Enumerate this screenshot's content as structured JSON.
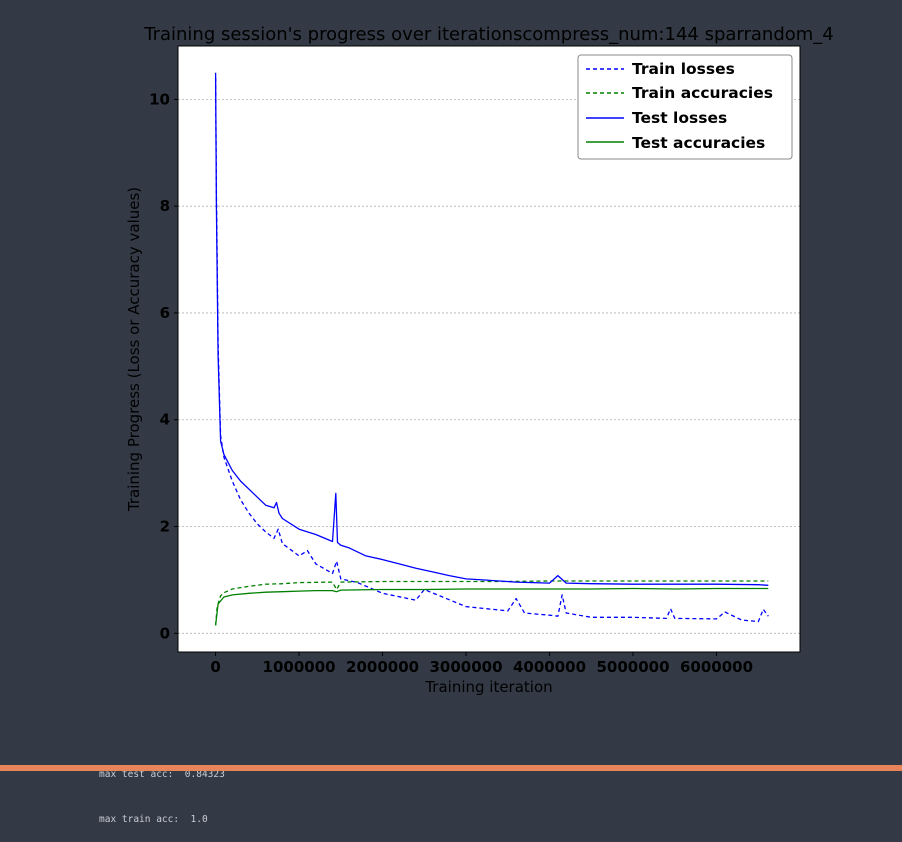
{
  "output": {
    "stats_lines": [
      "max test acc:  0.84323",
      "max train acc:  1.0"
    ]
  },
  "colors": {
    "page_background": "#333a45",
    "plot_background": "#ffffff",
    "losses": "#0000ff",
    "accuracies": "#008000",
    "footer_bar": "#e9845a"
  },
  "chart_data": {
    "type": "line",
    "title": "Training session's progress over iterationscompress_num:144 sparrandom_4",
    "xlabel": "Training iteration",
    "ylabel": "Training Progress (Loss or Accuracy values)",
    "xlim": [
      -450000,
      7000000
    ],
    "ylim": [
      -0.35,
      11.0
    ],
    "x_ticks": [
      0,
      1000000,
      2000000,
      3000000,
      4000000,
      5000000,
      6000000
    ],
    "y_ticks": [
      0,
      2,
      4,
      6,
      8,
      10
    ],
    "grid": "horizontal dashed",
    "legend_position": "top-right",
    "series": [
      {
        "name": "Train losses",
        "style": "dashed",
        "color": "#0000ff",
        "x": [
          0,
          10000,
          30000,
          60000,
          100000,
          200000,
          300000,
          400000,
          500000,
          600000,
          700000,
          750000,
          800000,
          1000000,
          1100000,
          1200000,
          1400000,
          1450000,
          1500000,
          1700000,
          2000000,
          2400000,
          2500000,
          3000000,
          3500000,
          3600000,
          3700000,
          4000000,
          4100000,
          4150000,
          4200000,
          4500000,
          5000000,
          5400000,
          5450000,
          5500000,
          6000000,
          6100000,
          6300000,
          6500000,
          6560000,
          6620000
        ],
        "y": [
          10.4,
          8.3,
          5.4,
          3.7,
          3.3,
          2.85,
          2.5,
          2.25,
          2.05,
          1.9,
          1.78,
          1.95,
          1.68,
          1.45,
          1.55,
          1.3,
          1.12,
          1.35,
          1.02,
          0.95,
          0.75,
          0.62,
          0.82,
          0.5,
          0.42,
          0.65,
          0.38,
          0.34,
          0.32,
          0.72,
          0.38,
          0.3,
          0.3,
          0.28,
          0.46,
          0.28,
          0.27,
          0.4,
          0.25,
          0.22,
          0.45,
          0.32
        ]
      },
      {
        "name": "Train accuracies",
        "style": "dashed",
        "color": "#008000",
        "x": [
          0,
          20000,
          60000,
          100000,
          200000,
          400000,
          600000,
          800000,
          1000000,
          1400000,
          1450000,
          1500000,
          2000000,
          2500000,
          3000000,
          3500000,
          4000000,
          4500000,
          5000000,
          5500000,
          6000000,
          6500000,
          6620000
        ],
        "y": [
          0.15,
          0.5,
          0.7,
          0.76,
          0.83,
          0.88,
          0.92,
          0.93,
          0.95,
          0.96,
          0.82,
          0.96,
          0.97,
          0.97,
          0.97,
          0.97,
          0.98,
          0.98,
          0.98,
          0.98,
          0.98,
          0.98,
          0.98
        ]
      },
      {
        "name": "Test losses",
        "style": "solid",
        "color": "#0000ff",
        "x": [
          0,
          10000,
          30000,
          60000,
          100000,
          200000,
          300000,
          400000,
          500000,
          600000,
          700000,
          730000,
          760000,
          800000,
          1000000,
          1200000,
          1400000,
          1440000,
          1460000,
          1500000,
          1600000,
          1800000,
          2000000,
          2200000,
          2400000,
          2600000,
          2800000,
          3000000,
          3200000,
          3400000,
          3600000,
          3800000,
          4000000,
          4100000,
          4200000,
          4500000,
          5000000,
          5500000,
          6000000,
          6500000,
          6620000
        ],
        "y": [
          10.5,
          8.0,
          5.2,
          3.6,
          3.35,
          3.05,
          2.85,
          2.7,
          2.55,
          2.4,
          2.35,
          2.45,
          2.25,
          2.15,
          1.95,
          1.85,
          1.72,
          2.62,
          1.7,
          1.65,
          1.6,
          1.45,
          1.38,
          1.3,
          1.22,
          1.15,
          1.08,
          1.02,
          1.0,
          0.98,
          0.96,
          0.95,
          0.94,
          1.08,
          0.94,
          0.93,
          0.92,
          0.92,
          0.92,
          0.91,
          0.9
        ]
      },
      {
        "name": "Test accuracies",
        "style": "solid",
        "color": "#008000",
        "x": [
          0,
          30000,
          100000,
          200000,
          400000,
          600000,
          800000,
          1000000,
          1200000,
          1400000,
          1450000,
          1500000,
          2000000,
          2500000,
          3000000,
          3500000,
          4000000,
          4500000,
          5000000,
          5500000,
          6000000,
          6500000,
          6620000
        ],
        "y": [
          0.15,
          0.55,
          0.68,
          0.72,
          0.75,
          0.77,
          0.78,
          0.79,
          0.8,
          0.8,
          0.78,
          0.81,
          0.82,
          0.82,
          0.83,
          0.83,
          0.83,
          0.83,
          0.84,
          0.83,
          0.84,
          0.84,
          0.84
        ]
      }
    ]
  }
}
